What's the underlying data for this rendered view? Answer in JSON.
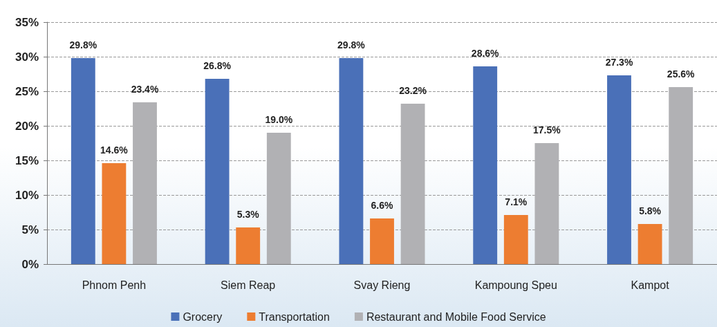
{
  "chart_data": {
    "type": "bar",
    "categories": [
      "Phnom Penh",
      "Siem Reap",
      "Svay Rieng",
      "Kampoung Speu",
      "Kampot"
    ],
    "series": [
      {
        "name": "Grocery",
        "color": "#4a70b8",
        "values": [
          29.8,
          26.8,
          29.8,
          28.6,
          27.3
        ],
        "value_labels": [
          "29.8%",
          "26.8%",
          "29.8%",
          "28.6%",
          "27.3%"
        ]
      },
      {
        "name": "Transportation",
        "color": "#ed7d31",
        "values": [
          14.6,
          5.3,
          6.6,
          7.1,
          5.8
        ],
        "value_labels": [
          "14.6%",
          "5.3%",
          "6.6%",
          "7.1%",
          "5.8%"
        ]
      },
      {
        "name": "Restaurant and Mobile Food Service",
        "color": "#b1b1b4",
        "values": [
          23.4,
          19.0,
          23.2,
          17.5,
          25.6
        ],
        "value_labels": [
          "23.4%",
          "19.0%",
          "23.2%",
          "17.5%",
          "25.6%"
        ]
      }
    ],
    "ylim": [
      0,
      35
    ],
    "yticks": [
      {
        "value": 0,
        "label": "0%"
      },
      {
        "value": 5,
        "label": "5%"
      },
      {
        "value": 10,
        "label": "10%"
      },
      {
        "value": 15,
        "label": "15%"
      },
      {
        "value": 20,
        "label": "20%"
      },
      {
        "value": 25,
        "label": "25%"
      },
      {
        "value": 30,
        "label": "30%"
      },
      {
        "value": 35,
        "label": "35%"
      }
    ],
    "grid": "y",
    "legend": "bottom"
  }
}
